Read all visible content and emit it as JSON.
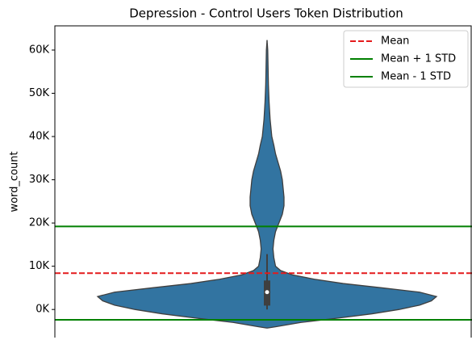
{
  "chart_data": {
    "type": "violin",
    "title": "Depression - Control Users Token Distribution",
    "ylabel": "word_count",
    "ylim": [
      -6500,
      65600
    ],
    "yticks": [
      {
        "value": 0,
        "label": "0K"
      },
      {
        "value": 10000,
        "label": "10K"
      },
      {
        "value": 20000,
        "label": "20K"
      },
      {
        "value": 30000,
        "label": "30K"
      },
      {
        "value": 40000,
        "label": "40K"
      },
      {
        "value": 50000,
        "label": "50K"
      },
      {
        "value": 60000,
        "label": "60K"
      }
    ],
    "color": "#3274a1",
    "violin": {
      "y": [
        -4300,
        -4000,
        -3000,
        -2000,
        -1000,
        0,
        1000,
        2000,
        3000,
        4000,
        5000,
        6000,
        7000,
        8000,
        9000,
        10000,
        12000,
        14000,
        16000,
        18000,
        20000,
        22000,
        24000,
        26000,
        28000,
        30000,
        32000,
        34000,
        36000,
        38000,
        40000,
        44000,
        48000,
        52000,
        56000,
        60000,
        62300
      ],
      "density": [
        0,
        0.05,
        0.2,
        0.42,
        0.62,
        0.78,
        0.9,
        0.97,
        1.0,
        0.9,
        0.68,
        0.45,
        0.28,
        0.15,
        0.08,
        0.05,
        0.04,
        0.035,
        0.04,
        0.05,
        0.07,
        0.09,
        0.1,
        0.1,
        0.095,
        0.09,
        0.08,
        0.065,
        0.05,
        0.04,
        0.028,
        0.018,
        0.012,
        0.008,
        0.006,
        0.004,
        0
      ]
    },
    "box": {
      "whisker_low": 0,
      "q1": 900,
      "median": 4000,
      "q3": 6700,
      "whisker_high": 12800
    },
    "lines": [
      {
        "name": "Mean",
        "value": 8400,
        "color": "#e41a1c",
        "style": "dashed"
      },
      {
        "name": "Mean + 1 STD",
        "value": 19200,
        "color": "#008000",
        "style": "solid"
      },
      {
        "name": "Mean - 1 STD",
        "value": -2400,
        "color": "#008000",
        "style": "solid"
      }
    ],
    "legend": "upper right"
  }
}
